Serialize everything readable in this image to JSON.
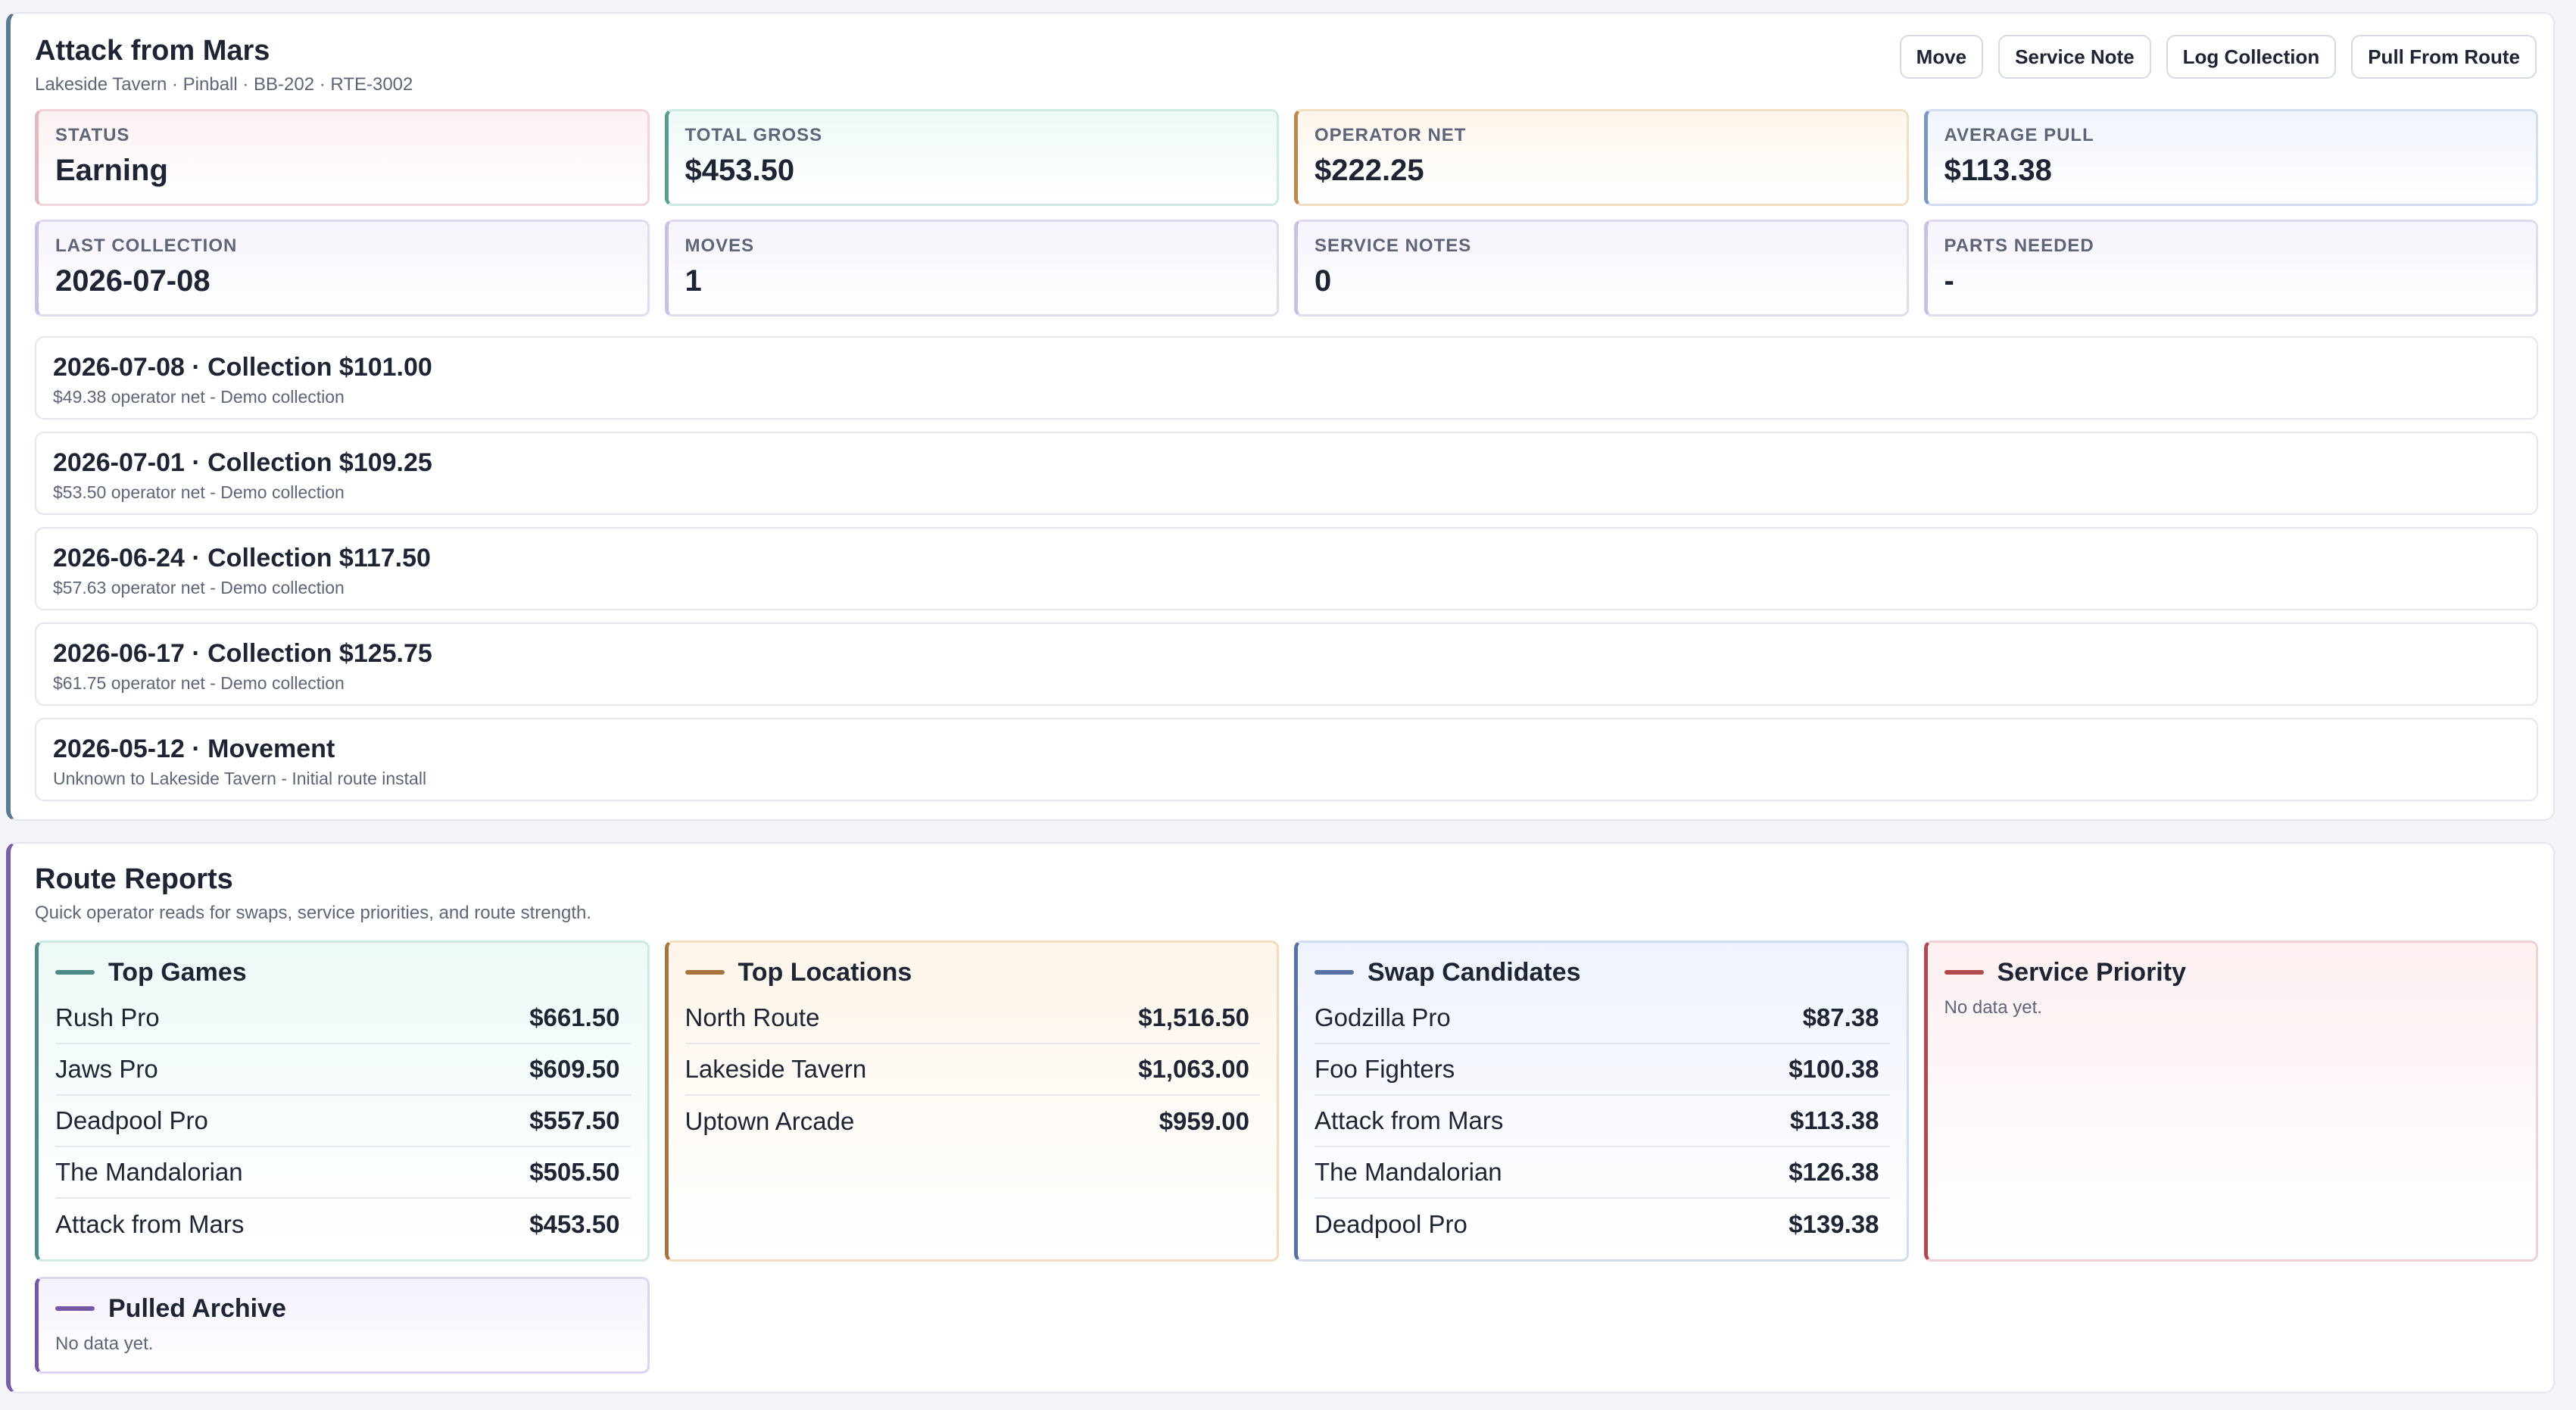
{
  "machine": {
    "title": "Attack from Mars",
    "subtitle": "Lakeside Tavern · Pinball · BB-202 · RTE-3002",
    "actions": [
      "Move",
      "Service Note",
      "Log Collection",
      "Pull From Route"
    ],
    "stats": [
      {
        "label": "Status",
        "value": "Earning",
        "tone": "#e3b9bd"
      },
      {
        "label": "Total Gross",
        "value": "$453.50",
        "tone": "#5b9c91"
      },
      {
        "label": "Operator Net",
        "value": "$222.25",
        "tone": "#b98a4c"
      },
      {
        "label": "Average Pull",
        "value": "$113.38",
        "tone": "#7b97c4"
      },
      {
        "label": "Last Collection",
        "value": "2026-07-08",
        "tone": "#c9bfe3"
      },
      {
        "label": "Moves",
        "value": "1",
        "tone": "#c9bfe3"
      },
      {
        "label": "Service Notes",
        "value": "0",
        "tone": "#c9bfe3"
      },
      {
        "label": "Parts Needed",
        "value": "-",
        "tone": "#c9bfe3"
      }
    ],
    "history": [
      {
        "title": "2026-07-08 · Collection $101.00",
        "detail": "$49.38 operator net - Demo collection"
      },
      {
        "title": "2026-07-01 · Collection $109.25",
        "detail": "$53.50 operator net - Demo collection"
      },
      {
        "title": "2026-06-24 · Collection $117.50",
        "detail": "$57.63 operator net - Demo collection"
      },
      {
        "title": "2026-06-17 · Collection $125.75",
        "detail": "$61.75 operator net - Demo collection"
      },
      {
        "title": "2026-05-12 · Movement",
        "detail": "Unknown to Lakeside Tavern - Initial route install"
      }
    ]
  },
  "reports": {
    "title": "Route Reports",
    "subtitle": "Quick operator reads for swaps, service priorities, and route strength.",
    "empty_text": "No data yet.",
    "cards": [
      {
        "title": "Top Games",
        "accent": "#4f8a86",
        "rows": [
          {
            "name": "Rush Pro",
            "value": "$661.50"
          },
          {
            "name": "Jaws Pro",
            "value": "$609.50"
          },
          {
            "name": "Deadpool Pro",
            "value": "$557.50"
          },
          {
            "name": "The Mandalorian",
            "value": "$505.50"
          },
          {
            "name": "Attack from Mars",
            "value": "$453.50"
          }
        ]
      },
      {
        "title": "Top Locations",
        "accent": "#a8733c",
        "rows": [
          {
            "name": "North Route",
            "value": "$1,516.50"
          },
          {
            "name": "Lakeside Tavern",
            "value": "$1,063.00"
          },
          {
            "name": "Uptown Arcade",
            "value": "$959.00"
          }
        ]
      },
      {
        "title": "Swap Candidates",
        "accent": "#5873a3",
        "rows": [
          {
            "name": "Godzilla Pro",
            "value": "$87.38"
          },
          {
            "name": "Foo Fighters",
            "value": "$100.38"
          },
          {
            "name": "Attack from Mars",
            "value": "$113.38"
          },
          {
            "name": "The Mandalorian",
            "value": "$126.38"
          },
          {
            "name": "Deadpool Pro",
            "value": "$139.38"
          }
        ]
      },
      {
        "title": "Service Priority",
        "accent": "#b04a4e",
        "rows": []
      },
      {
        "title": "Pulled Archive",
        "accent": "#7657a6",
        "rows": []
      }
    ]
  }
}
